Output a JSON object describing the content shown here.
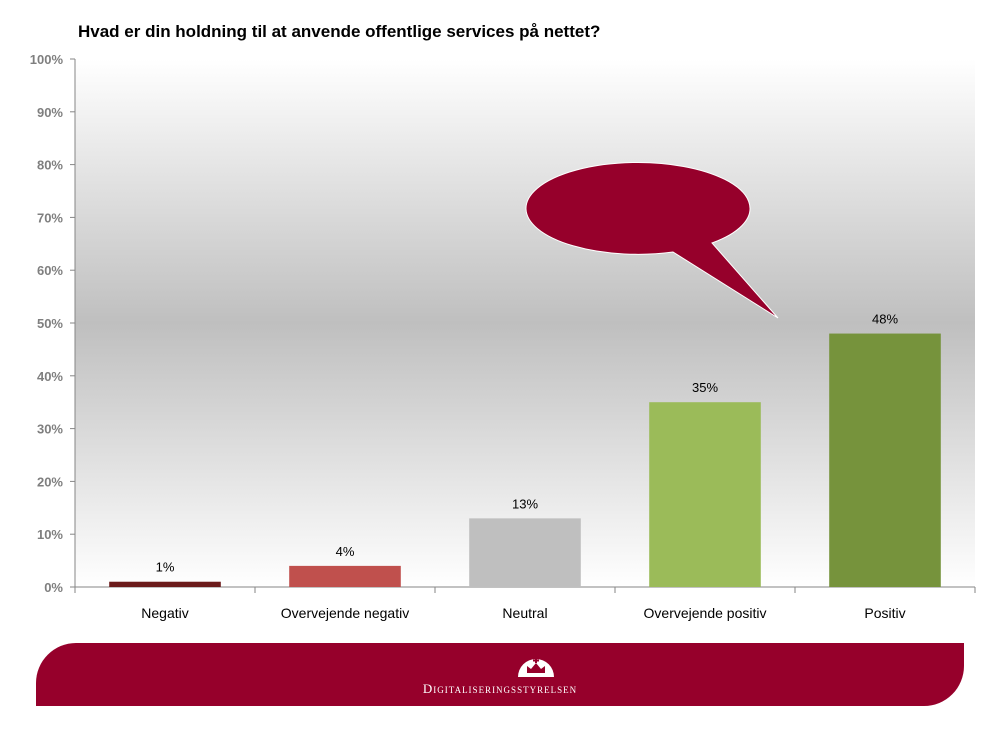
{
  "colors": {
    "positive_dark": "#76933c",
    "positive_light": "#9bbb59",
    "neutral": "#bfbfbf",
    "negative_light": "#c0504d",
    "negative_dark": "#6b1a1a",
    "brand": "#96002b"
  },
  "footer": {
    "brand_name": "Digitaliseringsstyrelsen",
    "logo_icon": "crown-icon"
  },
  "chart_data": {
    "type": "bar",
    "title": "Hvad er din holdning til at anvende offentlige services på nettet?",
    "categories": [
      "Negativ",
      "Overvejende negativ",
      "Neutral",
      "Overvejende positiv",
      "Positiv"
    ],
    "values": [
      1,
      4,
      13,
      35,
      48
    ],
    "data_labels": [
      "1%",
      "4%",
      "13%",
      "35%",
      "48%"
    ],
    "bar_colors": [
      "#6b1a1a",
      "#c0504d",
      "#bfbfbf",
      "#9bbb59",
      "#76933c"
    ],
    "ylim": [
      0,
      100
    ],
    "yticks": [
      0,
      10,
      20,
      30,
      40,
      50,
      60,
      70,
      80,
      90,
      100
    ],
    "ytick_labels": [
      "0%",
      "10%",
      "20%",
      "30%",
      "40%",
      "50%",
      "60%",
      "70%",
      "80%",
      "90%",
      "100%"
    ],
    "xlabel": "",
    "ylabel": "",
    "callout": {
      "shape": "speech-bubble",
      "color": "#96002b",
      "text": ""
    }
  }
}
